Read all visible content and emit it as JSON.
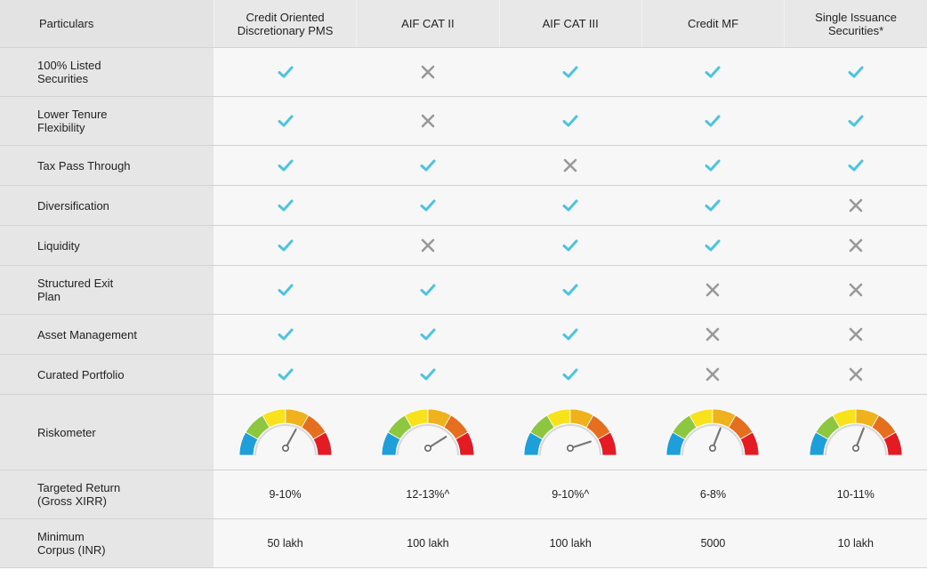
{
  "table": {
    "headers": [
      "Particulars",
      "Credit Oriented\nDiscretionary PMS",
      "AIF CAT II",
      "AIF CAT III",
      "Credit MF",
      "Single Issuance\nSecurities*"
    ],
    "rows": [
      {
        "label": "100% Listed\nSecurities",
        "values": [
          "yes",
          "no",
          "yes",
          "yes",
          "yes"
        ]
      },
      {
        "label": "Lower Tenure\nFlexibility",
        "values": [
          "yes",
          "no",
          "yes",
          "yes",
          "yes"
        ]
      },
      {
        "label": "Tax Pass Through",
        "values": [
          "yes",
          "yes",
          "no",
          "yes",
          "yes"
        ]
      },
      {
        "label": "Diversification",
        "values": [
          "yes",
          "yes",
          "yes",
          "yes",
          "no"
        ]
      },
      {
        "label": "Liquidity",
        "values": [
          "yes",
          "no",
          "yes",
          "yes",
          "no"
        ]
      },
      {
        "label": "Structured Exit\nPlan",
        "values": [
          "yes",
          "yes",
          "yes",
          "no",
          "no"
        ]
      },
      {
        "label": "Asset Management",
        "values": [
          "yes",
          "yes",
          "yes",
          "no",
          "no"
        ]
      },
      {
        "label": "Curated Portfolio",
        "values": [
          "yes",
          "yes",
          "yes",
          "no",
          "no"
        ]
      }
    ],
    "riskometer": {
      "label": "Riskometer",
      "needle_levels": [
        0.66,
        0.82,
        0.9,
        0.62,
        0.62
      ],
      "segment_colors": [
        "#1e9fd9",
        "#8dc63f",
        "#f7e21b",
        "#f0b21c",
        "#e56f1f",
        "#e41b23"
      ]
    },
    "returns": {
      "label": "Targeted Return\n(Gross XIRR)",
      "values": [
        "9-10%",
        "12-13%^",
        "9-10%^",
        "6-8%",
        "10-11%"
      ]
    },
    "corpus": {
      "label": "Minimum\nCorpus (INR)",
      "values": [
        "50 lakh",
        "100 lakh",
        "100 lakh",
        "5000",
        "10 lakh"
      ]
    }
  },
  "icons": {
    "yes": "check-icon",
    "no": "cross-icon"
  },
  "colors": {
    "check": "#4cc4e0",
    "cross": "#999999",
    "header_bg": "#e8e8e8",
    "label_bg": "#e6e6e6",
    "cell_bg": "#f7f7f7"
  }
}
